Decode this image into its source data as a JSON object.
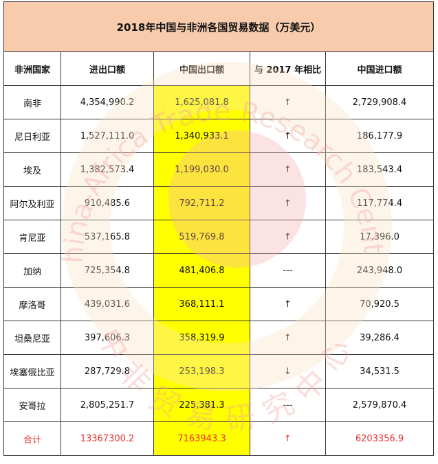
{
  "title": "2018年中国与非洲各国贸易数据（万美元）",
  "headers": [
    "非洲国家",
    "进出口额",
    "中国出口额",
    "与 2017 年相比",
    "中国进口额"
  ],
  "rows": [
    {
      "country": "南非",
      "total": "4,354,990.2",
      "export": "1,625,081.8",
      "trend": "↑",
      "import": "2,729,908.4"
    },
    {
      "country": "尼日利亚",
      "total": "1,527,111.0",
      "export": "1,340,933.1",
      "trend": "↑",
      "import": "186,177.9"
    },
    {
      "country": "埃及",
      "total": "1,382,573.4",
      "export": "1,199,030.0",
      "trend": "↑",
      "import": "183,543.4"
    },
    {
      "country": "阿尔及利亚",
      "total": "910,485.6",
      "export": "792,711.2",
      "trend": "↑",
      "import": "117,774.4"
    },
    {
      "country": "肯尼亚",
      "total": "537,165.8",
      "export": "519,769.8",
      "trend": "↑",
      "import": "17,396.0"
    },
    {
      "country": "加纳",
      "total": "725,354.8",
      "export": "481,406.8",
      "trend": "---",
      "import": "243,948.0"
    },
    {
      "country": "摩洛哥",
      "total": "439,031.6",
      "export": "368,111.1",
      "trend": "↑",
      "import": "70,920.5"
    },
    {
      "country": "坦桑尼亚",
      "total": "397,606.3",
      "export": "358,319.9",
      "trend": "↑",
      "import": "39,286.4"
    },
    {
      "country": "埃塞俄比亚",
      "total": "287,729.8",
      "export": "253,198.3",
      "trend": "↓",
      "import": "34,531.5"
    },
    {
      "country": "安哥拉",
      "total": "2,805,251.7",
      "export": "225,381.3",
      "trend": "---",
      "import": "2,579,870.4"
    }
  ],
  "total_row": {
    "country": "合计",
    "total": "13367300.2",
    "export": "7163943.3",
    "trend": "↑",
    "import": "6203356.9"
  },
  "watermark": {
    "text_en": "China-Africa Trade Research Center",
    "text_cn": "中非贸易研究中心",
    "colors": {
      "ring": "#fbe3c4",
      "disc": "#f6b0b0",
      "text": "#f2a0a0"
    }
  },
  "colors": {
    "title_bg": "#f8cbad",
    "highlight": "#ffff00",
    "total_text": "#e8322e",
    "border": "#333333"
  }
}
